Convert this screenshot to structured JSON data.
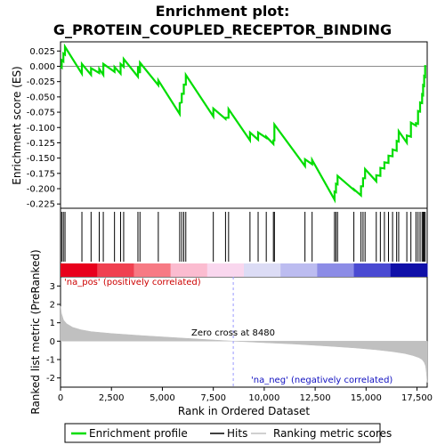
{
  "chart_data": {
    "type": "line",
    "title_line1": "Enrichment plot:",
    "title_line2": "G_PROTEIN_COUPLED_RECEPTOR_BINDING",
    "xlabel": "Rank in Ordered Dataset",
    "ylabel_top": "Enrichment score (ES)",
    "ylabel_bottom": "Ranked list metric (PreRanked)",
    "xlim": [
      0,
      18000
    ],
    "es_ylim": [
      -0.232,
      0.04
    ],
    "metric_ylim": [
      -2.5,
      3.5
    ],
    "x_ticks": [
      0,
      2500,
      5000,
      7500,
      10000,
      12500,
      15000,
      17500
    ],
    "x_tick_labels": [
      "0",
      "2,500",
      "5,000",
      "7,500",
      "10,000",
      "12,500",
      "15,000",
      "17,500"
    ],
    "es_ticks": [
      0.025,
      0.0,
      -0.025,
      -0.05,
      -0.075,
      -0.1,
      -0.125,
      -0.15,
      -0.175,
      -0.2,
      -0.225
    ],
    "es_tick_labels": [
      "0.025",
      "0.000",
      "-0.025",
      "-0.050",
      "-0.075",
      "-0.100",
      "-0.125",
      "-0.150",
      "-0.175",
      "-0.200",
      "-0.225"
    ],
    "metric_ticks": [
      3,
      2,
      1,
      0,
      -1,
      -2
    ],
    "metric_tick_labels": [
      "3",
      "2",
      "1",
      "0",
      "-1",
      "-2"
    ],
    "zero_cross_rank": 8480,
    "zero_cross_label": "Zero cross at 8480",
    "pos_label": "'na_pos' (positively correlated)",
    "neg_label": "'na_neg' (negatively correlated)",
    "hits": [
      60,
      140,
      220,
      1050,
      1500,
      1900,
      2100,
      2650,
      2950,
      3100,
      3800,
      3900,
      4800,
      5850,
      5950,
      6050,
      6150,
      7500,
      8100,
      8250,
      9300,
      9700,
      10100,
      10450,
      10500,
      12000,
      12350,
      13450,
      13520,
      13600,
      14400,
      14750,
      14850,
      14950,
      15500,
      15700,
      15900,
      16100,
      16300,
      16500,
      16600,
      17000,
      17200,
      17450,
      17550,
      17650,
      17750,
      17800,
      17850,
      17900
    ],
    "series": [
      {
        "name": "Enrichment profile",
        "color": "#00dd00",
        "x": [
          0,
          60,
          140,
          220,
          1050,
          1500,
          1900,
          2100,
          2650,
          2950,
          3100,
          3800,
          3900,
          4800,
          5850,
          5950,
          6050,
          6150,
          7500,
          8100,
          8250,
          9300,
          9700,
          10100,
          10450,
          10500,
          12000,
          12350,
          13450,
          13520,
          13600,
          14400,
          14750,
          14850,
          14950,
          15500,
          15700,
          15900,
          16100,
          16300,
          16500,
          16600,
          17000,
          17200,
          17450,
          17550,
          17650,
          17750,
          17800,
          17850,
          17900
        ],
        "y": [
          0.0,
          0.01,
          0.021,
          0.032,
          0.004,
          -0.003,
          -0.004,
          0.004,
          -0.001,
          0.004,
          0.012,
          -0.0,
          0.006,
          -0.023,
          -0.06,
          -0.045,
          -0.03,
          -0.014,
          -0.069,
          -0.084,
          -0.07,
          -0.108,
          -0.108,
          -0.115,
          -0.121,
          -0.095,
          -0.152,
          -0.153,
          -0.205,
          -0.192,
          -0.179,
          -0.201,
          -0.196,
          -0.183,
          -0.168,
          -0.178,
          -0.166,
          -0.157,
          -0.146,
          -0.136,
          -0.122,
          -0.106,
          -0.113,
          -0.092,
          -0.093,
          -0.073,
          -0.059,
          -0.046,
          -0.031,
          -0.016,
          0.002
        ],
        "drops": [
          [
            60,
            0.01,
            -0.002
          ],
          [
            140,
            0.021,
            0.008
          ],
          [
            220,
            0.032,
            0.019
          ],
          [
            1050,
            0.004,
            -0.012
          ],
          [
            1500,
            -0.003,
            -0.014
          ],
          [
            1900,
            -0.004,
            -0.011
          ],
          [
            2100,
            0.004,
            -0.014
          ],
          [
            2650,
            -0.001,
            -0.009
          ],
          [
            2950,
            0.004,
            -0.012
          ],
          [
            3100,
            0.012,
            -0.001
          ],
          [
            3800,
            -0.0,
            -0.017
          ],
          [
            3900,
            0.006,
            -0.011
          ],
          [
            4800,
            -0.023,
            -0.031
          ],
          [
            5850,
            -0.06,
            -0.078
          ],
          [
            5950,
            -0.045,
            -0.059
          ],
          [
            6050,
            -0.03,
            -0.045
          ],
          [
            6150,
            -0.014,
            -0.03
          ],
          [
            7500,
            -0.069,
            -0.082
          ],
          [
            8100,
            -0.084,
            -0.086
          ],
          [
            8250,
            -0.07,
            -0.084
          ],
          [
            9300,
            -0.108,
            -0.121
          ],
          [
            9700,
            -0.108,
            -0.12
          ],
          [
            10100,
            -0.115,
            -0.117
          ],
          [
            10450,
            -0.121,
            -0.127
          ],
          [
            10500,
            -0.095,
            -0.121
          ],
          [
            12000,
            -0.152,
            -0.163
          ],
          [
            12350,
            -0.153,
            -0.16
          ],
          [
            13450,
            -0.205,
            -0.218
          ],
          [
            13520,
            -0.192,
            -0.206
          ],
          [
            13600,
            -0.179,
            -0.193
          ],
          [
            14400,
            -0.201,
            -0.202
          ],
          [
            14750,
            -0.196,
            -0.211
          ],
          [
            14850,
            -0.183,
            -0.196
          ],
          [
            14950,
            -0.168,
            -0.183
          ],
          [
            15500,
            -0.178,
            -0.188
          ],
          [
            15700,
            -0.166,
            -0.179
          ],
          [
            15900,
            -0.157,
            -0.167
          ],
          [
            16100,
            -0.146,
            -0.158
          ],
          [
            16300,
            -0.136,
            -0.147
          ],
          [
            16500,
            -0.122,
            -0.138
          ],
          [
            16600,
            -0.106,
            -0.123
          ],
          [
            17000,
            -0.113,
            -0.125
          ],
          [
            17200,
            -0.092,
            -0.115
          ],
          [
            17450,
            -0.093,
            -0.097
          ],
          [
            17550,
            -0.073,
            -0.094
          ],
          [
            17650,
            -0.059,
            -0.074
          ],
          [
            17750,
            -0.046,
            -0.06
          ],
          [
            17800,
            -0.031,
            -0.047
          ],
          [
            17850,
            -0.016,
            -0.032
          ],
          [
            17900,
            0.002,
            -0.017
          ]
        ]
      },
      {
        "name": "Hits",
        "color": "#000000"
      },
      {
        "name": "Ranking metric scores",
        "color": "#c0c0c0",
        "x": [
          0,
          50,
          150,
          300,
          600,
          1000,
          1500,
          2500,
          4000,
          5500,
          7000,
          8480,
          10000,
          11500,
          13000,
          14500,
          15500,
          16300,
          16900,
          17300,
          17600,
          17750,
          17850,
          17920,
          17960,
          18000
        ],
        "y": [
          1.9,
          1.5,
          1.15,
          0.95,
          0.75,
          0.62,
          0.52,
          0.42,
          0.3,
          0.2,
          0.1,
          0.0,
          -0.08,
          -0.16,
          -0.26,
          -0.37,
          -0.47,
          -0.57,
          -0.67,
          -0.78,
          -0.9,
          -1.0,
          -1.15,
          -1.35,
          -1.7,
          -2.25
        ]
      }
    ],
    "heat_colors": [
      "#e8001c",
      "#f04050",
      "#f77a84",
      "#fbbcd0",
      "#f9d7ee",
      "#dcdcf5",
      "#bcbcf0",
      "#8c8ce6",
      "#4a4ad2",
      "#1010a8"
    ]
  },
  "legend": {
    "items": [
      {
        "label": "Enrichment profile",
        "color": "#00dd00"
      },
      {
        "label": "Hits",
        "color": "#000000"
      },
      {
        "label": "Ranking metric scores",
        "color": "#c0c0c0"
      }
    ]
  }
}
